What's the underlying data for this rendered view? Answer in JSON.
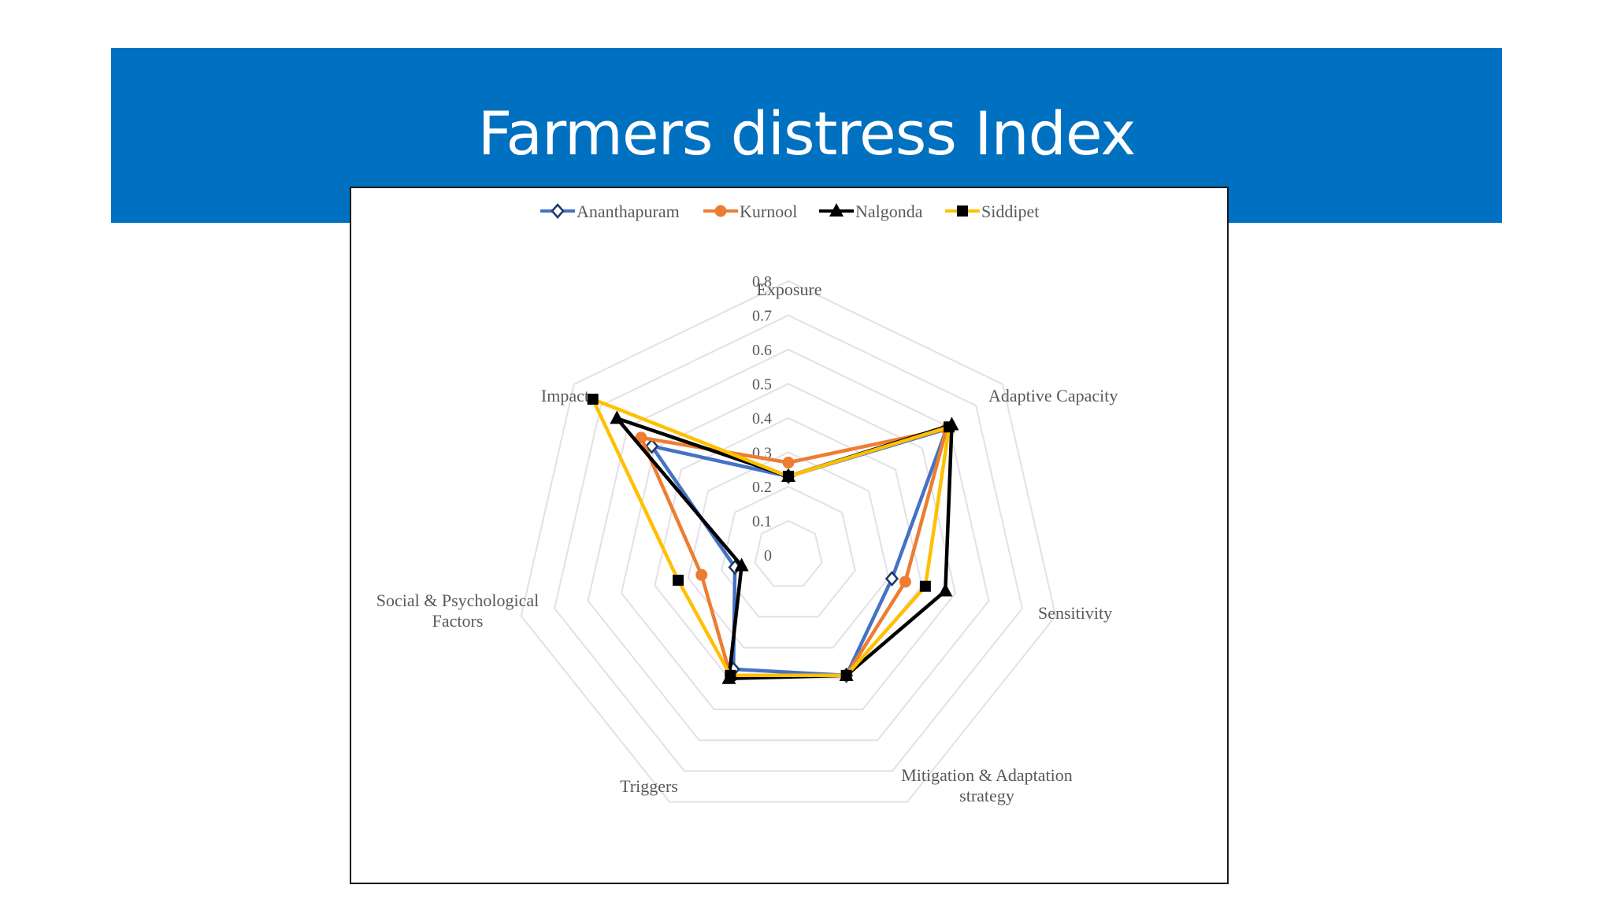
{
  "slide": {
    "title": "Farmers distress Index"
  },
  "chart_data": {
    "type": "radar",
    "title": "",
    "axes": [
      [
        "Exposure"
      ],
      [
        "Adaptive Capacity"
      ],
      [
        "Sensitivity"
      ],
      [
        "Mitigation & Adaptation",
        "strategy"
      ],
      [
        "Triggers"
      ],
      [
        "Social & Psychological",
        "Factors"
      ],
      [
        "Impact"
      ]
    ],
    "rlim": [
      0,
      0.8
    ],
    "ticks": [
      "0",
      "0.1",
      "0.2",
      "0.3",
      "0.4",
      "0.5",
      "0.6",
      "0.7",
      "0.8"
    ],
    "grid": true,
    "legend_position": "top",
    "series": [
      {
        "name": "Ananthapuram",
        "color": "#4472c4",
        "marker": "diamond",
        "values": [
          0.23,
          0.59,
          0.31,
          0.39,
          0.37,
          0.16,
          0.51
        ]
      },
      {
        "name": "Kurnool",
        "color": "#ed7d31",
        "marker": "circle",
        "values": [
          0.27,
          0.59,
          0.35,
          0.39,
          0.39,
          0.26,
          0.55
        ]
      },
      {
        "name": "Nalgonda",
        "color": "#000000",
        "marker": "triangle",
        "values": [
          0.23,
          0.61,
          0.47,
          0.39,
          0.4,
          0.14,
          0.64
        ]
      },
      {
        "name": "Siddipet",
        "color": "#ffc000",
        "marker": "square",
        "values": [
          0.23,
          0.6,
          0.41,
          0.39,
          0.39,
          0.33,
          0.73
        ]
      }
    ]
  }
}
